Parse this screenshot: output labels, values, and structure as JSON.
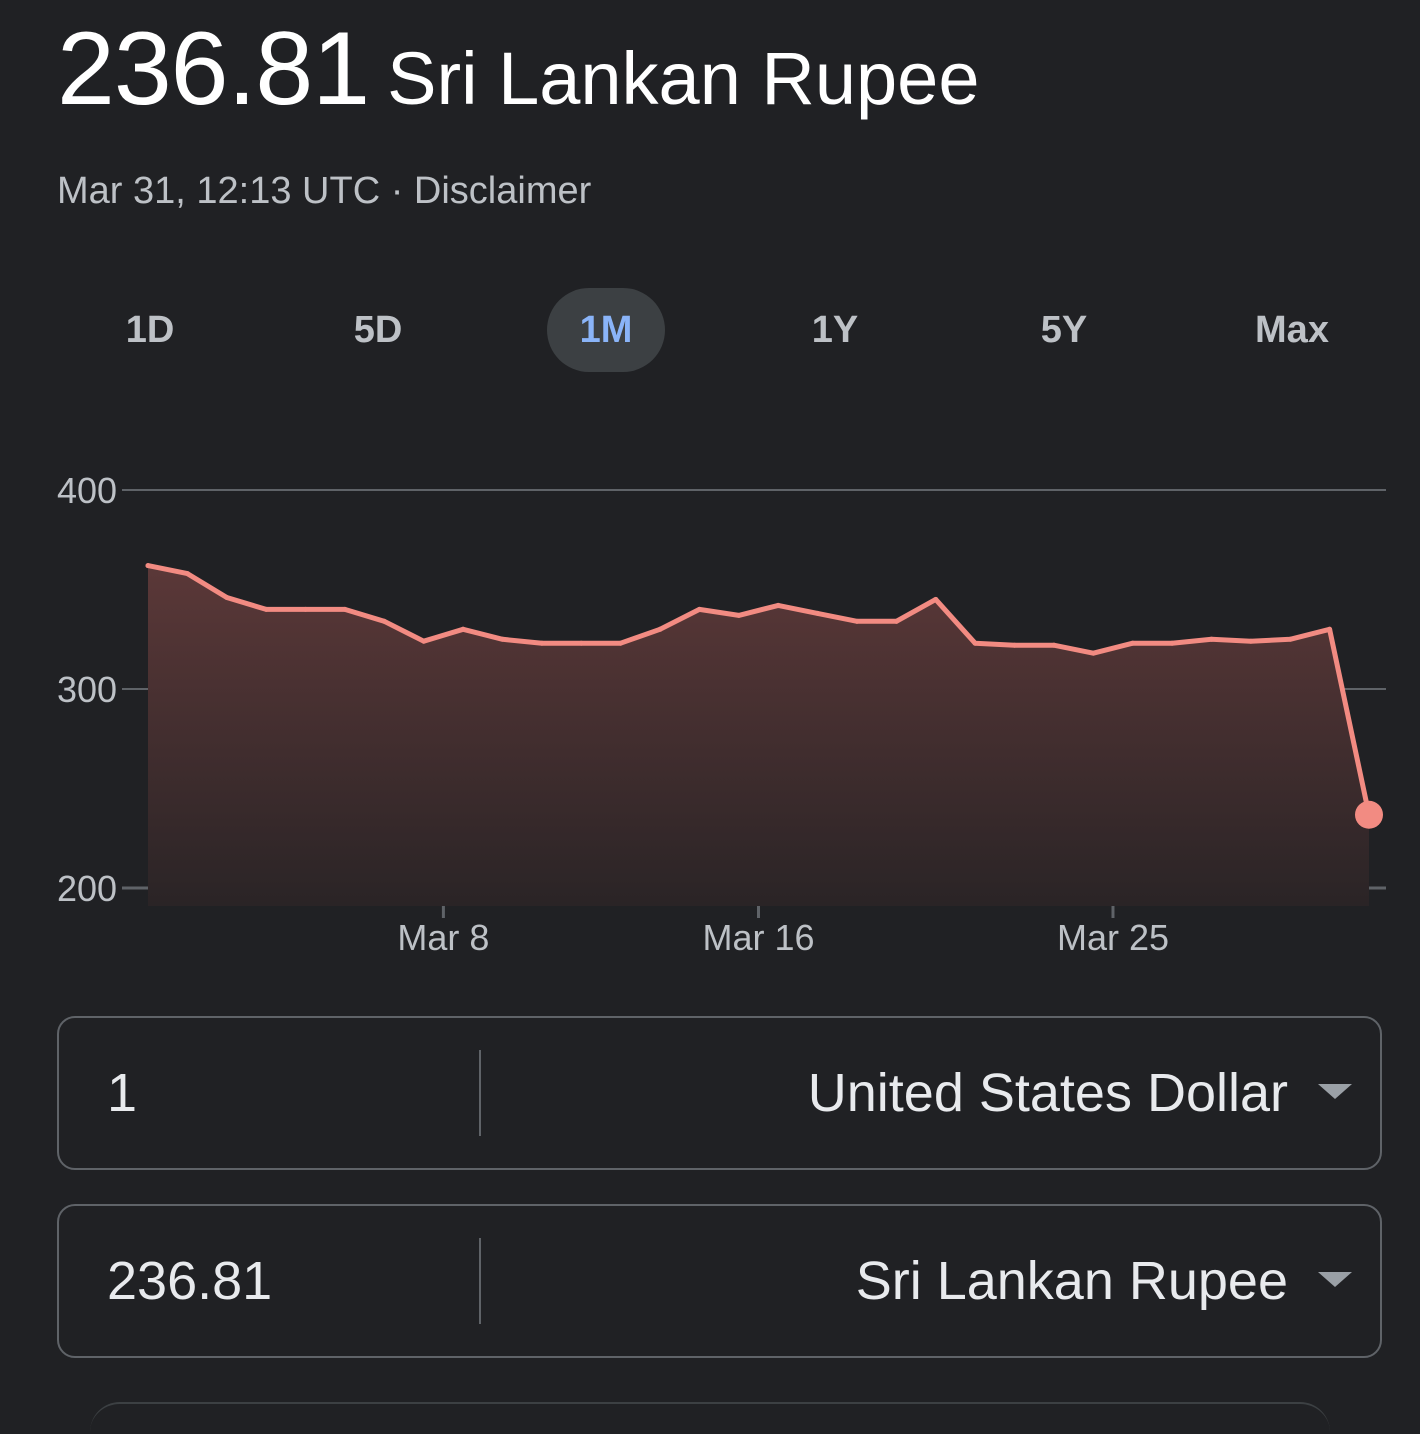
{
  "header": {
    "rate": "236.81",
    "currency_name": "Sri Lankan Rupee"
  },
  "meta": {
    "timestamp": "Mar 31, 12:13 UTC",
    "separator": " · ",
    "disclaimer": "Disclaimer"
  },
  "tabs": [
    {
      "label": "1D",
      "active": false
    },
    {
      "label": "5D",
      "active": false
    },
    {
      "label": "1M",
      "active": true
    },
    {
      "label": "1Y",
      "active": false
    },
    {
      "label": "5Y",
      "active": false
    },
    {
      "label": "Max",
      "active": false
    }
  ],
  "colors": {
    "line": "#f28b82",
    "fill_top": "#5b3838",
    "fill_bottom": "#2a2426",
    "grid": "#5f6368",
    "tab_active_text": "#8ab4f8",
    "tab_active_bg": "#3c4043"
  },
  "chart_data": {
    "type": "area",
    "title": "",
    "xlabel": "",
    "ylabel": "",
    "ylim": [
      200,
      400
    ],
    "y_ticks": [
      400,
      300,
      200
    ],
    "x_tick_labels": [
      {
        "label": "Mar 8",
        "day": 8
      },
      {
        "label": "Mar 16",
        "day": 16
      },
      {
        "label": "Mar 25",
        "day": 25
      }
    ],
    "x_domain": [
      0.5,
      31.5
    ],
    "x_units": "day of March",
    "grid": true,
    "series": [
      {
        "x": [
          0.5,
          1.5,
          2.5,
          3.5,
          4.5,
          5.5,
          6.5,
          7.5,
          8.5,
          9.5,
          10.5,
          11.5,
          12.5,
          13.5,
          14.5,
          15.5,
          16.5,
          17.5,
          18.5,
          19.5,
          20.5,
          21.5,
          22.5,
          23.5,
          24.5,
          25.5,
          26.5,
          27.5,
          28.5,
          29.5,
          30.5,
          31.5
        ],
        "values": [
          362,
          358,
          346,
          340,
          340,
          340,
          334,
          324,
          330,
          325,
          323,
          323,
          323,
          330,
          340,
          337,
          342,
          338,
          334,
          334,
          345,
          323,
          322,
          322,
          318,
          323,
          323,
          325,
          324,
          325,
          330,
          236.81
        ]
      }
    ],
    "last_point_marker": true
  },
  "converter": {
    "from": {
      "amount": "1",
      "currency": "United States Dollar"
    },
    "to": {
      "amount": "236.81",
      "currency": "Sri Lankan Rupee"
    }
  }
}
